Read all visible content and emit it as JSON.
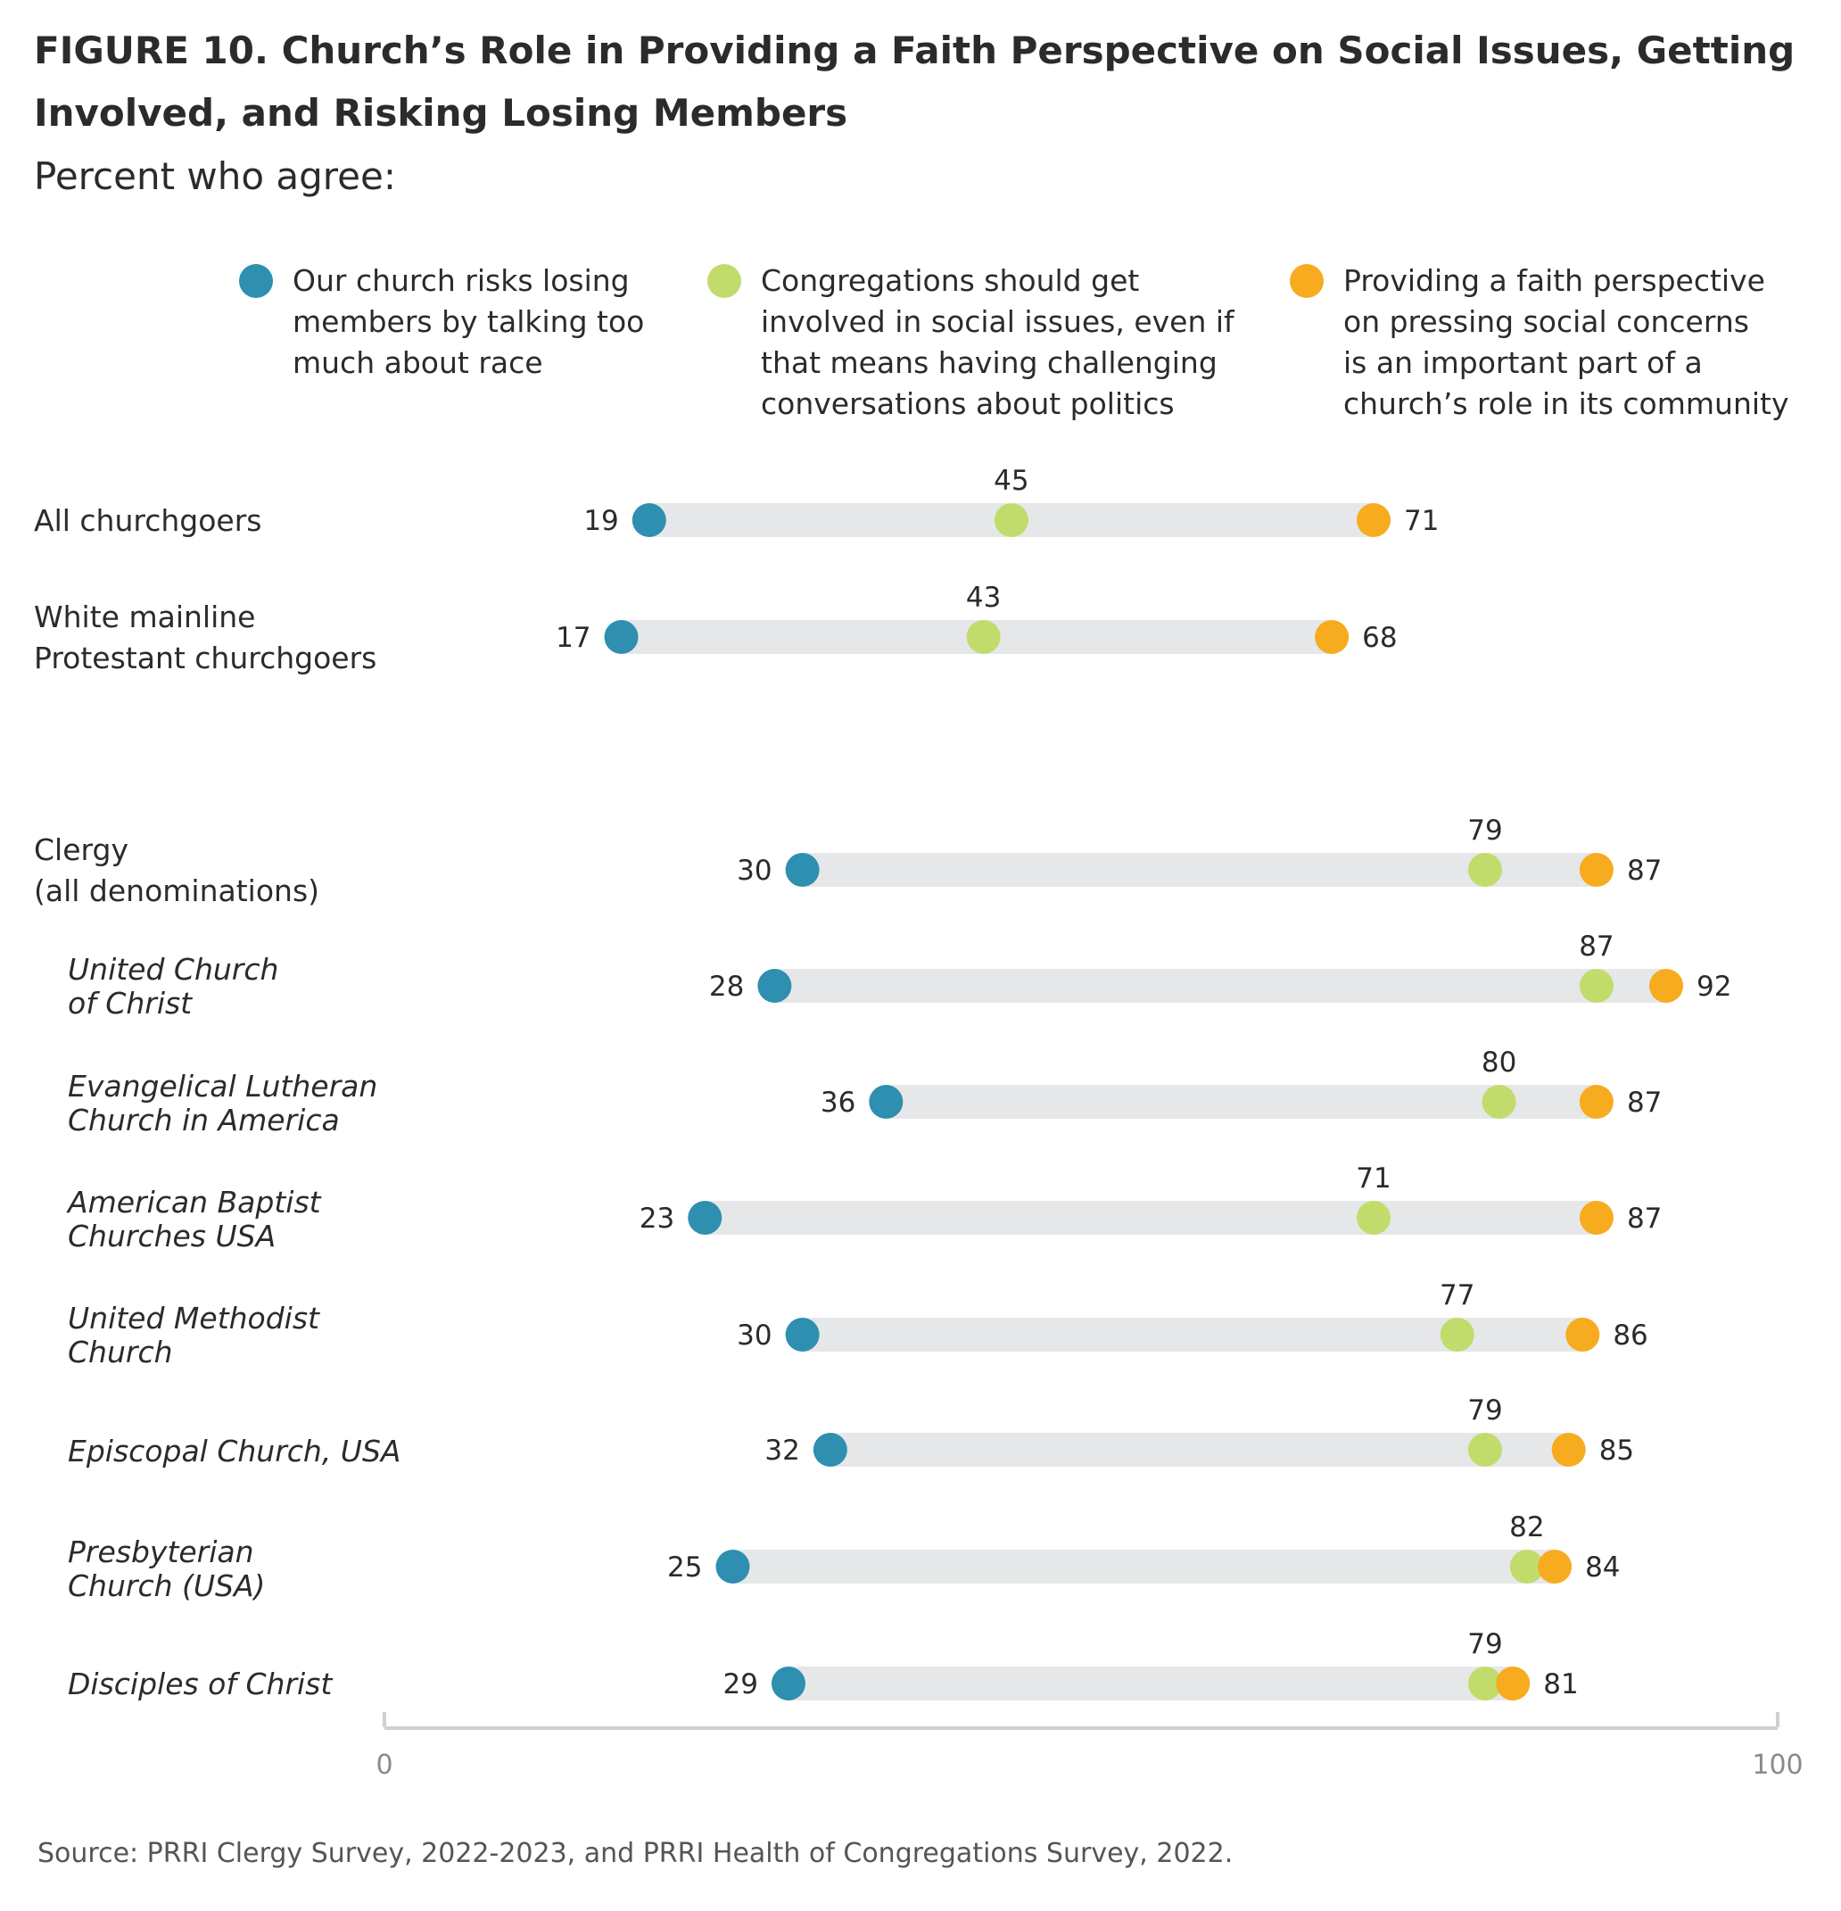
{
  "title": "FIGURE 10.  Church’s Role in Providing a Faith Perspective on Social Issues, Getting Involved, and Risking Losing Members",
  "subtitle": "Percent who agree:",
  "source": "Source: PRRI Clergy Survey, 2022-2023, and PRRI Health of Congregations Survey, 2022.",
  "colors": {
    "risk": "#2e8fb0",
    "involve": "#c2dc6b",
    "faith": "#f7ab1e",
    "bar": "#e6e7e8",
    "axis": "#d0d0d0"
  },
  "chart_data": {
    "type": "dot-range",
    "title": "FIGURE 10.  Church’s Role in Providing a Faith Perspective on Social Issues, Getting Involved, and Risking Losing Members",
    "subtitle": "Percent who agree:",
    "xlim": [
      0,
      100
    ],
    "x_ticks": [
      "0",
      "100"
    ],
    "grid": false,
    "legend_position": "top",
    "series": [
      {
        "key": "risk",
        "name": "Our church risks losing members by talking too much about race",
        "legend_lines": [
          "Our church risks losing",
          "members by talking too",
          "much about race"
        ],
        "color": "#2e8fb0"
      },
      {
        "key": "involve",
        "name": "Congregations should get involved in social issues, even if that means having challenging conversations about politics",
        "legend_lines": [
          "Congregations should get",
          "involved in social issues, even if",
          "that means having challenging",
          "conversations about politics"
        ],
        "color": "#c2dc6b"
      },
      {
        "key": "faith",
        "name": "Providing a faith perspective on pressing social concerns is an important part of a church’s role in its community",
        "legend_lines": [
          "Providing a faith perspective",
          "on pressing social concerns",
          "is an important part of a",
          "church’s role in its community"
        ],
        "color": "#f7ab1e"
      }
    ],
    "rows": [
      {
        "label_lines": [
          "All churchgoers"
        ],
        "italic": false,
        "risk": 19,
        "involve": 45,
        "faith": 71
      },
      {
        "label_lines": [
          "White mainline",
          "Protestant churchgoers"
        ],
        "italic": false,
        "risk": 17,
        "involve": 43,
        "faith": 68
      },
      {
        "label_lines": [
          "Clergy",
          "(all denominations)"
        ],
        "italic": false,
        "risk": 30,
        "involve": 79,
        "faith": 87
      },
      {
        "label_lines": [
          "United Church",
          "of Christ"
        ],
        "italic": true,
        "risk": 28,
        "involve": 87,
        "faith": 92
      },
      {
        "label_lines": [
          "Evangelical Lutheran",
          "Church in America"
        ],
        "italic": true,
        "risk": 36,
        "involve": 80,
        "faith": 87
      },
      {
        "label_lines": [
          "American Baptist",
          "Churches USA"
        ],
        "italic": true,
        "risk": 23,
        "involve": 71,
        "faith": 87
      },
      {
        "label_lines": [
          "United Methodist",
          "Church"
        ],
        "italic": true,
        "risk": 30,
        "involve": 77,
        "faith": 86
      },
      {
        "label_lines": [
          "Episcopal Church, USA"
        ],
        "italic": true,
        "risk": 32,
        "involve": 79,
        "faith": 85
      },
      {
        "label_lines": [
          "Presbyterian",
          "Church (USA)"
        ],
        "italic": true,
        "risk": 25,
        "involve": 82,
        "faith": 84
      },
      {
        "label_lines": [
          "Disciples of Christ"
        ],
        "italic": true,
        "risk": 29,
        "involve": 79,
        "faith": 81
      }
    ]
  }
}
